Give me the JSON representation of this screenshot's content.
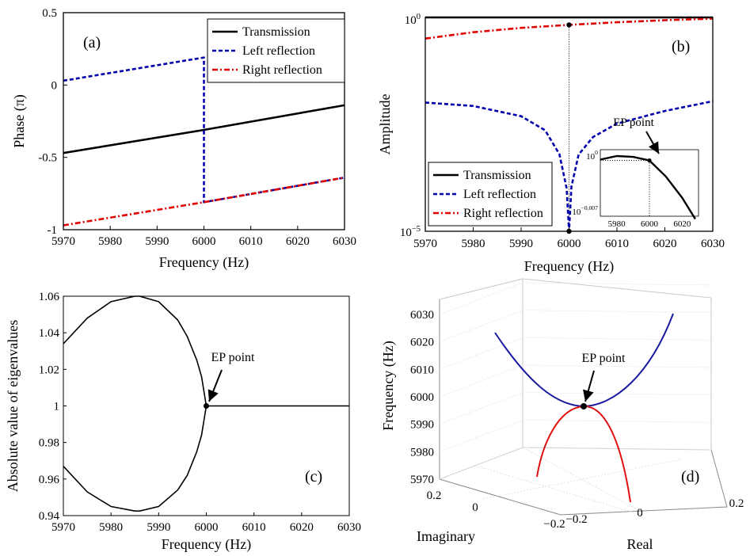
{
  "chart_data": [
    {
      "panel": "(a)",
      "type": "line",
      "xlabel": "Frequency (Hz)",
      "ylabel": "Phase (π)",
      "xlim": [
        5970,
        6030
      ],
      "ylim": [
        -1,
        0.5
      ],
      "xticks": [
        "5970",
        "5980",
        "5990",
        "6000",
        "6010",
        "6020",
        "6030"
      ],
      "yticks": [
        "-1",
        "-0.5",
        "0",
        "0.5"
      ],
      "legend_position": "top-right",
      "series": [
        {
          "name": "Transmission",
          "color": "#000000",
          "style": "solid",
          "x": [
            5970,
            6000,
            6030
          ],
          "y": [
            -0.47,
            -0.31,
            -0.14
          ]
        },
        {
          "name": "Left reflection",
          "color": "#0000aa",
          "style": "dashed",
          "x": [
            5970,
            6000,
            6000,
            6030
          ],
          "y": [
            0.03,
            0.19,
            -0.81,
            -0.64
          ]
        },
        {
          "name": "Right reflection",
          "color": "#e00000",
          "style": "dashdot",
          "x": [
            5970,
            6000,
            6030
          ],
          "y": [
            -0.97,
            -0.81,
            -0.64
          ]
        }
      ]
    },
    {
      "panel": "(b)",
      "type": "line",
      "xlabel": "Frequency (Hz)",
      "ylabel": "Amplitude",
      "yscale": "log",
      "xlim": [
        5970,
        6030
      ],
      "ylim_exponent": [
        -5,
        0
      ],
      "xticks": [
        "5970",
        "5980",
        "5990",
        "6000",
        "6010",
        "6020",
        "6030"
      ],
      "yticks": [
        {
          "base": "10",
          "exp": "0"
        },
        {
          "base": "10",
          "exp": "−5"
        }
      ],
      "legend_position": "bottom-left",
      "annotation": "EP point",
      "series": [
        {
          "name": "Transmission",
          "color": "#000000",
          "style": "solid",
          "x": [
            5970,
            6030
          ],
          "y": [
            1.0,
            1.0
          ]
        },
        {
          "name": "Left reflection",
          "color": "#0000aa",
          "style": "dashed",
          "x": [
            5970,
            5980,
            5990,
            5995,
            5998,
            5999.5,
            6000,
            6000.5,
            6002,
            6005,
            6010,
            6020,
            6030
          ],
          "y": [
            0.0102,
            0.0085,
            0.0049,
            0.0023,
            0.00063,
            0.0001,
            1e-05,
            0.00011,
            0.00062,
            0.0016,
            0.0033,
            0.0065,
            0.011
          ]
        },
        {
          "name": "Right reflection",
          "color": "#e00000",
          "style": "dashdot",
          "x": [
            5970,
            5980,
            5990,
            6000,
            6010,
            6020,
            6030
          ],
          "y": [
            0.32,
            0.45,
            0.57,
            0.67,
            0.77,
            0.86,
            0.94
          ]
        }
      ],
      "inset": {
        "xlim": [
          5970,
          6030
        ],
        "xticks": [
          "5980",
          "6000",
          "6020"
        ],
        "yticks": [
          {
            "base": "10",
            "exp": "0"
          },
          {
            "base": "10",
            "exp": "−0.007"
          }
        ],
        "series": {
          "x": [
            5970,
            5980,
            5990,
            6000,
            6010,
            6020,
            6028
          ],
          "y_exp": [
            -0.0004,
            0,
            -0.0001,
            -0.0005,
            -0.0023,
            -0.0047,
            -0.0071
          ]
        }
      }
    },
    {
      "panel": "(c)",
      "type": "line",
      "xlabel": "Frequency (Hz)",
      "ylabel": "Absolute value of eigenvalues",
      "xlim": [
        5970,
        6030
      ],
      "ylim": [
        0.94,
        1.06
      ],
      "xticks": [
        "5970",
        "5980",
        "5990",
        "6000",
        "6010",
        "6020",
        "6030"
      ],
      "yticks": [
        "0.94",
        "0.96",
        "0.98",
        "1",
        "1.02",
        "1.04",
        "1.06"
      ],
      "annotation": "EP point",
      "ep": {
        "x": 6000,
        "y": 1.0
      },
      "series": [
        {
          "name": "",
          "color": "#000000",
          "x": [
            5970,
            5975,
            5980,
            5985,
            5986,
            5990,
            5994,
            5996,
            5998,
            5999,
            6000
          ],
          "y": [
            1.034,
            1.048,
            1.057,
            1.06,
            1.06,
            1.057,
            1.047,
            1.038,
            1.025,
            1.016,
            1.0
          ]
        },
        {
          "name": "",
          "color": "#000000",
          "x": [
            5970,
            5975,
            5980,
            5985,
            5986,
            5990,
            5994,
            5996,
            5998,
            5999,
            6000
          ],
          "y": [
            0.967,
            0.953,
            0.945,
            0.9425,
            0.9425,
            0.945,
            0.954,
            0.962,
            0.975,
            0.984,
            1.0
          ]
        },
        {
          "name": "",
          "color": "#000000",
          "x": [
            6000,
            6030
          ],
          "y": [
            1.0,
            1.0
          ]
        }
      ]
    },
    {
      "panel": "(d)",
      "type": "line",
      "projection": "3d",
      "zlabel": "Frequency (Hz)",
      "xlabel": "Real",
      "ylabel": "Imaginary",
      "zticks": [
        "5970",
        "5980",
        "5990",
        "6000",
        "6010",
        "6020",
        "6030"
      ],
      "realticks": [
        "−0.2",
        "0",
        "0.2"
      ],
      "imagticks": [
        "0.2",
        "0",
        "−0.2"
      ],
      "annotation": "EP point",
      "series": [
        {
          "name": "",
          "color": "#1a1aa0",
          "freq": [
            6025,
            6010,
            6000,
            5997,
            6000,
            6010,
            6030
          ]
        },
        {
          "name": "",
          "color": "#e01010",
          "freq": [
            5997,
            5990,
            5980,
            5970
          ]
        }
      ]
    }
  ]
}
